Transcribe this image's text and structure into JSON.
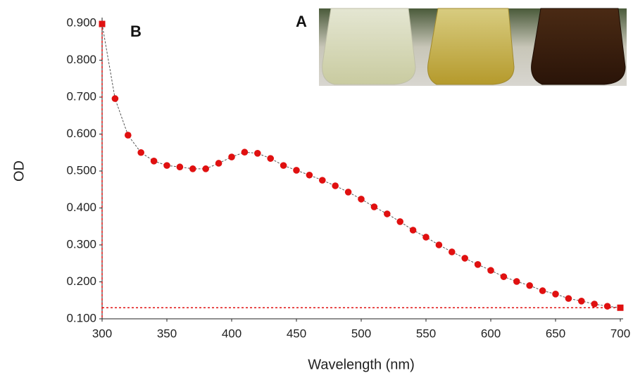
{
  "chart_data": {
    "type": "line",
    "x_label": "Wavelength (nm)",
    "y_label": "OD",
    "annotations": [
      "B",
      "A"
    ],
    "x": [
      300,
      310,
      320,
      330,
      340,
      350,
      360,
      370,
      380,
      390,
      400,
      410,
      420,
      430,
      440,
      450,
      460,
      470,
      480,
      490,
      500,
      510,
      520,
      530,
      540,
      550,
      560,
      570,
      580,
      590,
      600,
      610,
      620,
      630,
      640,
      650,
      660,
      670,
      680,
      690,
      700
    ],
    "series": [
      {
        "color": "#e01010",
        "values": [
          0.898,
          0.696,
          0.597,
          0.55,
          0.527,
          0.515,
          0.511,
          0.506,
          0.506,
          0.521,
          0.538,
          0.551,
          0.548,
          0.534,
          0.515,
          0.502,
          0.489,
          0.475,
          0.46,
          0.443,
          0.424,
          0.403,
          0.384,
          0.363,
          0.34,
          0.321,
          0.3,
          0.281,
          0.264,
          0.247,
          0.231,
          0.214,
          0.201,
          0.19,
          0.176,
          0.167,
          0.155,
          0.148,
          0.14,
          0.134,
          0.13
        ]
      }
    ],
    "xlim": [
      300,
      700
    ],
    "xticks": [
      300,
      350,
      400,
      450,
      500,
      550,
      600,
      650,
      700
    ],
    "ylim": [
      0.1,
      0.9
    ],
    "yticks": [
      {
        "value": 0.1,
        "label": "0.100"
      },
      {
        "value": 0.2,
        "label": "0.200"
      },
      {
        "value": 0.3,
        "label": "0.300"
      },
      {
        "value": 0.4,
        "label": "0.400"
      },
      {
        "value": 0.5,
        "label": "0.500"
      },
      {
        "value": 0.6,
        "label": "0.600"
      },
      {
        "value": 0.7,
        "label": "0.700"
      },
      {
        "value": 0.8,
        "label": "0.800"
      },
      {
        "value": 0.9,
        "label": "0.900"
      }
    ],
    "grid": false
  }
}
